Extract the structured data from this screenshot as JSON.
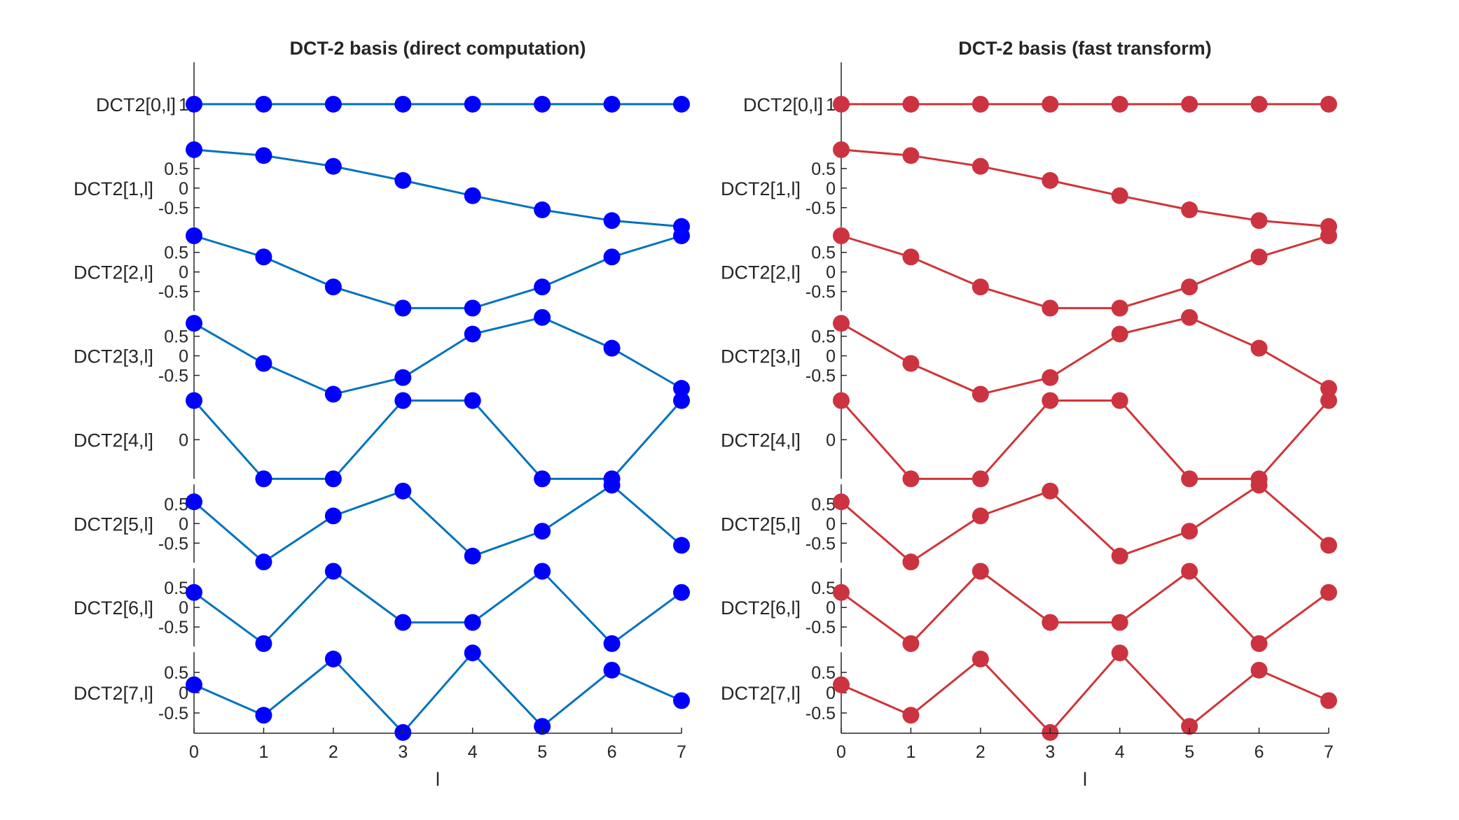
{
  "chart_data": [
    {
      "type": "line",
      "title": "DCT-2 basis (direct computation)",
      "xlabel": "l",
      "x": [
        0,
        1,
        2,
        3,
        4,
        5,
        6,
        7
      ],
      "x_ticks": [
        "0",
        "1",
        "2",
        "3",
        "4",
        "5",
        "6",
        "7"
      ],
      "line_color": "#0072BD",
      "marker_color": "#0000FF",
      "series": [
        {
          "name": "DCT2[0,l]",
          "values": [
            1,
            1,
            1,
            1,
            1,
            1,
            1,
            1
          ],
          "ylim": [
            0.5,
            1.5
          ],
          "y_ticks": [
            1
          ],
          "y_tick_labels": [
            "1"
          ]
        },
        {
          "name": "DCT2[1,l]",
          "values": [
            0.981,
            0.831,
            0.556,
            0.195,
            -0.195,
            -0.556,
            -0.831,
            -0.981
          ],
          "ylim": [
            -1,
            1
          ],
          "y_ticks": [
            0.5,
            0,
            -0.5
          ],
          "y_tick_labels": [
            "0.5",
            "0",
            "-0.5"
          ]
        },
        {
          "name": "DCT2[2,l]",
          "values": [
            0.924,
            0.383,
            -0.383,
            -0.924,
            -0.924,
            -0.383,
            0.383,
            0.924
          ],
          "ylim": [
            -1,
            1
          ],
          "y_ticks": [
            0.5,
            0,
            -0.5
          ],
          "y_tick_labels": [
            "0.5",
            "0",
            "-0.5"
          ]
        },
        {
          "name": "DCT2[3,l]",
          "values": [
            0.831,
            -0.195,
            -0.981,
            -0.556,
            0.556,
            0.981,
            0.195,
            -0.831
          ],
          "ylim": [
            -1,
            1
          ],
          "y_ticks": [
            0.5,
            0,
            -0.5
          ],
          "y_tick_labels": [
            "0.5",
            "0",
            "-0.5"
          ]
        },
        {
          "name": "DCT2[4,l]",
          "values": [
            0.707,
            -0.707,
            -0.707,
            0.707,
            0.707,
            -0.707,
            -0.707,
            0.707
          ],
          "ylim": [
            -0.707,
            0.707
          ],
          "y_ticks": [
            0
          ],
          "y_tick_labels": [
            "0"
          ]
        },
        {
          "name": "DCT2[5,l]",
          "values": [
            0.556,
            -0.981,
            0.195,
            0.831,
            -0.831,
            -0.195,
            0.981,
            -0.556
          ],
          "ylim": [
            -1,
            1
          ],
          "y_ticks": [
            0.5,
            0,
            -0.5
          ],
          "y_tick_labels": [
            "0.5",
            "0",
            "-0.5"
          ]
        },
        {
          "name": "DCT2[6,l]",
          "values": [
            0.383,
            -0.924,
            0.924,
            -0.383,
            -0.383,
            0.924,
            -0.924,
            0.383
          ],
          "ylim": [
            -1,
            1
          ],
          "y_ticks": [
            0.5,
            0,
            -0.5
          ],
          "y_tick_labels": [
            "0.5",
            "0",
            "-0.5"
          ]
        },
        {
          "name": "DCT2[7,l]",
          "values": [
            0.195,
            -0.556,
            0.831,
            -0.981,
            0.981,
            -0.831,
            0.556,
            -0.195
          ],
          "ylim": [
            -1,
            1
          ],
          "y_ticks": [
            0.5,
            0,
            -0.5
          ],
          "y_tick_labels": [
            "0.5",
            "0",
            "-0.5"
          ]
        }
      ]
    },
    {
      "type": "line",
      "title": "DCT-2 basis (fast transform)",
      "xlabel": "l",
      "x": [
        0,
        1,
        2,
        3,
        4,
        5,
        6,
        7
      ],
      "x_ticks": [
        "0",
        "1",
        "2",
        "3",
        "4",
        "5",
        "6",
        "7"
      ],
      "line_color": "#D03438",
      "marker_color": "#CC3340",
      "series": [
        {
          "name": "DCT2[0,l]",
          "values": [
            1,
            1,
            1,
            1,
            1,
            1,
            1,
            1
          ],
          "ylim": [
            0.5,
            1.5
          ],
          "y_ticks": [
            1
          ],
          "y_tick_labels": [
            "1"
          ]
        },
        {
          "name": "DCT2[1,l]",
          "values": [
            0.981,
            0.831,
            0.556,
            0.195,
            -0.195,
            -0.556,
            -0.831,
            -0.981
          ],
          "ylim": [
            -1,
            1
          ],
          "y_ticks": [
            0.5,
            0,
            -0.5
          ],
          "y_tick_labels": [
            "0.5",
            "0",
            "-0.5"
          ]
        },
        {
          "name": "DCT2[2,l]",
          "values": [
            0.924,
            0.383,
            -0.383,
            -0.924,
            -0.924,
            -0.383,
            0.383,
            0.924
          ],
          "ylim": [
            -1,
            1
          ],
          "y_ticks": [
            0.5,
            0,
            -0.5
          ],
          "y_tick_labels": [
            "0.5",
            "0",
            "-0.5"
          ]
        },
        {
          "name": "DCT2[3,l]",
          "values": [
            0.831,
            -0.195,
            -0.981,
            -0.556,
            0.556,
            0.981,
            0.195,
            -0.831
          ],
          "ylim": [
            -1,
            1
          ],
          "y_ticks": [
            0.5,
            0,
            -0.5
          ],
          "y_tick_labels": [
            "0.5",
            "0",
            "-0.5"
          ]
        },
        {
          "name": "DCT2[4,l]",
          "values": [
            0.707,
            -0.707,
            -0.707,
            0.707,
            0.707,
            -0.707,
            -0.707,
            0.707
          ],
          "ylim": [
            -0.707,
            0.707
          ],
          "y_ticks": [
            0
          ],
          "y_tick_labels": [
            "0"
          ]
        },
        {
          "name": "DCT2[5,l]",
          "values": [
            0.556,
            -0.981,
            0.195,
            0.831,
            -0.831,
            -0.195,
            0.981,
            -0.556
          ],
          "ylim": [
            -1,
            1
          ],
          "y_ticks": [
            0.5,
            0,
            -0.5
          ],
          "y_tick_labels": [
            "0.5",
            "0",
            "-0.5"
          ]
        },
        {
          "name": "DCT2[6,l]",
          "values": [
            0.383,
            -0.924,
            0.924,
            -0.383,
            -0.383,
            0.924,
            -0.924,
            0.383
          ],
          "ylim": [
            -1,
            1
          ],
          "y_ticks": [
            0.5,
            0,
            -0.5
          ],
          "y_tick_labels": [
            "0.5",
            "0",
            "-0.5"
          ]
        },
        {
          "name": "DCT2[7,l]",
          "values": [
            0.195,
            -0.556,
            0.831,
            -0.981,
            0.981,
            -0.831,
            0.556,
            -0.195
          ],
          "ylim": [
            -1,
            1
          ],
          "y_ticks": [
            0.5,
            0,
            -0.5
          ],
          "y_tick_labels": [
            "0.5",
            "0",
            "-0.5"
          ]
        }
      ]
    }
  ]
}
